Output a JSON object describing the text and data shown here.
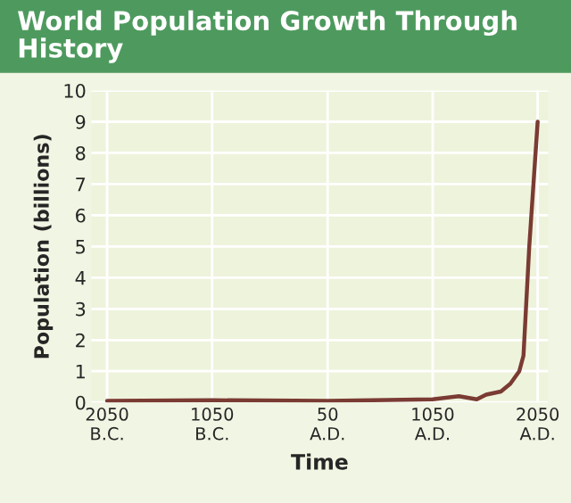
{
  "chart_data": {
    "type": "line",
    "title": "World Population Growth Through History",
    "xlabel": "Time",
    "ylabel": "Population (billions)",
    "x": [
      -2050,
      -1050,
      50,
      1050,
      1300,
      1470,
      1560,
      1700,
      1790,
      1875,
      1915,
      1970,
      2050
    ],
    "series": [
      {
        "color": "#7a3b33",
        "values": [
          0.05,
          0.07,
          0.05,
          0.1,
          0.2,
          0.1,
          0.25,
          0.35,
          0.6,
          1.0,
          1.5,
          5,
          9
        ]
      }
    ],
    "xlim": [
      -2200,
      2150
    ],
    "ylim": [
      0,
      10
    ],
    "xticks": [
      {
        "value": -2050,
        "label": "2050\nB.C."
      },
      {
        "value": -1050,
        "label": "1050\nB.C."
      },
      {
        "value": 50,
        "label": "50\nA.D."
      },
      {
        "value": 1050,
        "label": "1050\nA.D."
      },
      {
        "value": 2050,
        "label": "2050\nA.D."
      }
    ],
    "yticks": [
      0,
      1,
      2,
      3,
      4,
      5,
      6,
      7,
      8,
      9,
      10
    ],
    "grid": true,
    "legend": false
  }
}
